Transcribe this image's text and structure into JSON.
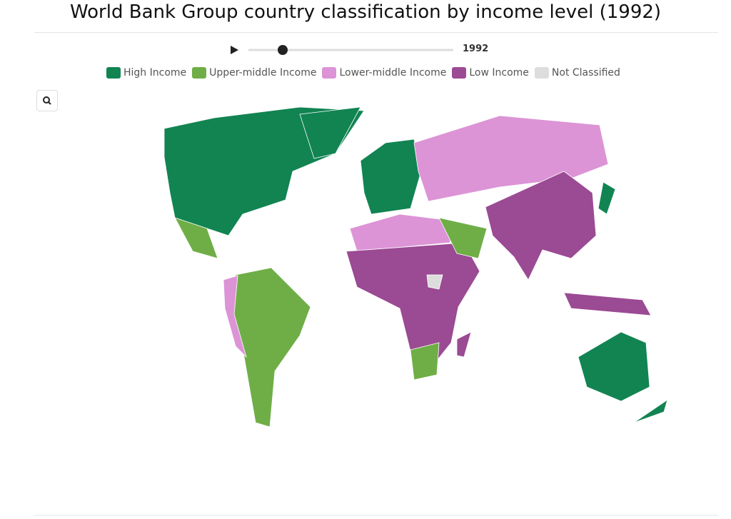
{
  "title": "World Bank Group country classification by income level (1992)",
  "slider": {
    "year": "1992"
  },
  "legend": [
    {
      "label": "High Income",
      "color": "#118452"
    },
    {
      "label": "Upper-middle Income",
      "color": "#6fae47"
    },
    {
      "label": "Lower-middle Income",
      "color": "#dc94d6"
    },
    {
      "label": "Low Income",
      "color": "#9b4a94"
    },
    {
      "label": "Not Classified",
      "color": "#dddddd"
    }
  ]
}
